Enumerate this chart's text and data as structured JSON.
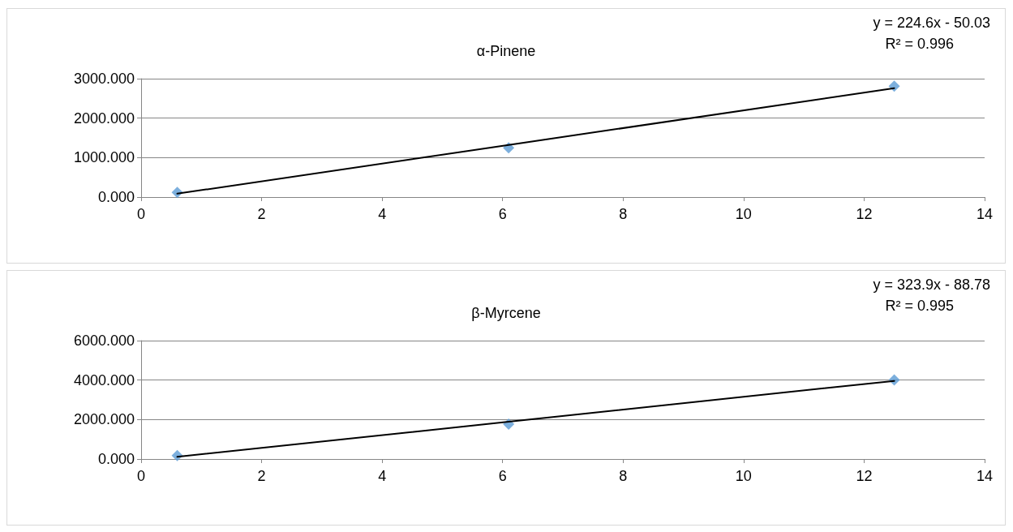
{
  "chart_data": [
    {
      "type": "scatter",
      "title": "α-Pinene",
      "marker": "diamond",
      "grid": "y",
      "x": [
        0.6,
        6.1,
        12.5
      ],
      "series": [
        {
          "color": "#5b9bd5",
          "values": [
            120,
            1250,
            2810
          ]
        },
        {
          "type": "line",
          "color": "#000000",
          "values": [
            85,
            1320,
            2760
          ],
          "marker": "none"
        }
      ],
      "xlim": [
        0,
        14
      ],
      "xticks": [
        0,
        2,
        4,
        6,
        8,
        10,
        12,
        14
      ],
      "ylim": [
        0,
        3000
      ],
      "yticks": [
        {
          "value": 0,
          "label": "0.000"
        },
        {
          "value": 1000,
          "label": "1000.000"
        },
        {
          "value": 2000,
          "label": "2000.000"
        },
        {
          "value": 3000,
          "label": "3000.000"
        }
      ],
      "annotations": [
        "y = 224.6x - 50.03",
        "R² = 0.996"
      ]
    },
    {
      "type": "scatter",
      "title": "β-Myrcene",
      "marker": "diamond",
      "grid": "y",
      "x": [
        0.6,
        6.1,
        12.5
      ],
      "series": [
        {
          "color": "#5b9bd5",
          "values": [
            170,
            1770,
            4010
          ]
        },
        {
          "type": "line",
          "color": "#000000",
          "values": [
            110,
            1890,
            3960
          ],
          "marker": "none"
        }
      ],
      "xlim": [
        0,
        14
      ],
      "xticks": [
        0,
        2,
        4,
        6,
        8,
        10,
        12,
        14
      ],
      "ylim": [
        0,
        6000
      ],
      "yticks": [
        {
          "value": 0,
          "label": "0.000"
        },
        {
          "value": 2000,
          "label": "2000.000"
        },
        {
          "value": 4000,
          "label": "4000.000"
        },
        {
          "value": 6000,
          "label": "6000.000"
        }
      ],
      "annotations": [
        "y = 323.9x - 88.78",
        "R² = 0.995"
      ]
    }
  ]
}
